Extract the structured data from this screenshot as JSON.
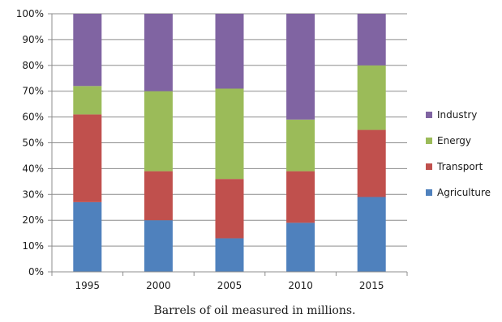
{
  "chart_data": {
    "type": "bar",
    "stacked": true,
    "percent_stacked": true,
    "categories": [
      "1995",
      "2000",
      "2005",
      "2010",
      "2015"
    ],
    "series": [
      {
        "name": "Agriculture",
        "values": [
          27,
          20,
          13,
          19,
          29
        ],
        "color": "#4f81bd"
      },
      {
        "name": "Transport",
        "values": [
          34,
          19,
          23,
          20,
          26
        ],
        "color": "#c0504d"
      },
      {
        "name": "Energy",
        "values": [
          11,
          31,
          35,
          20,
          25
        ],
        "color": "#9bbb59"
      },
      {
        "name": "Industry",
        "values": [
          28,
          30,
          29,
          41,
          20
        ],
        "color": "#8064a2"
      }
    ],
    "y_ticks": [
      "0%",
      "10%",
      "20%",
      "30%",
      "40%",
      "50%",
      "60%",
      "70%",
      "80%",
      "90%",
      "100%"
    ],
    "ylim": [
      0,
      100
    ],
    "grid": true,
    "legend_position": "right",
    "legend_order": [
      "Industry",
      "Energy",
      "Transport",
      "Agriculture"
    ],
    "caption": "Barrels of oil measured in millions.",
    "grid_color": "#8c8c8c",
    "axis_color": "#8c8c8c"
  }
}
